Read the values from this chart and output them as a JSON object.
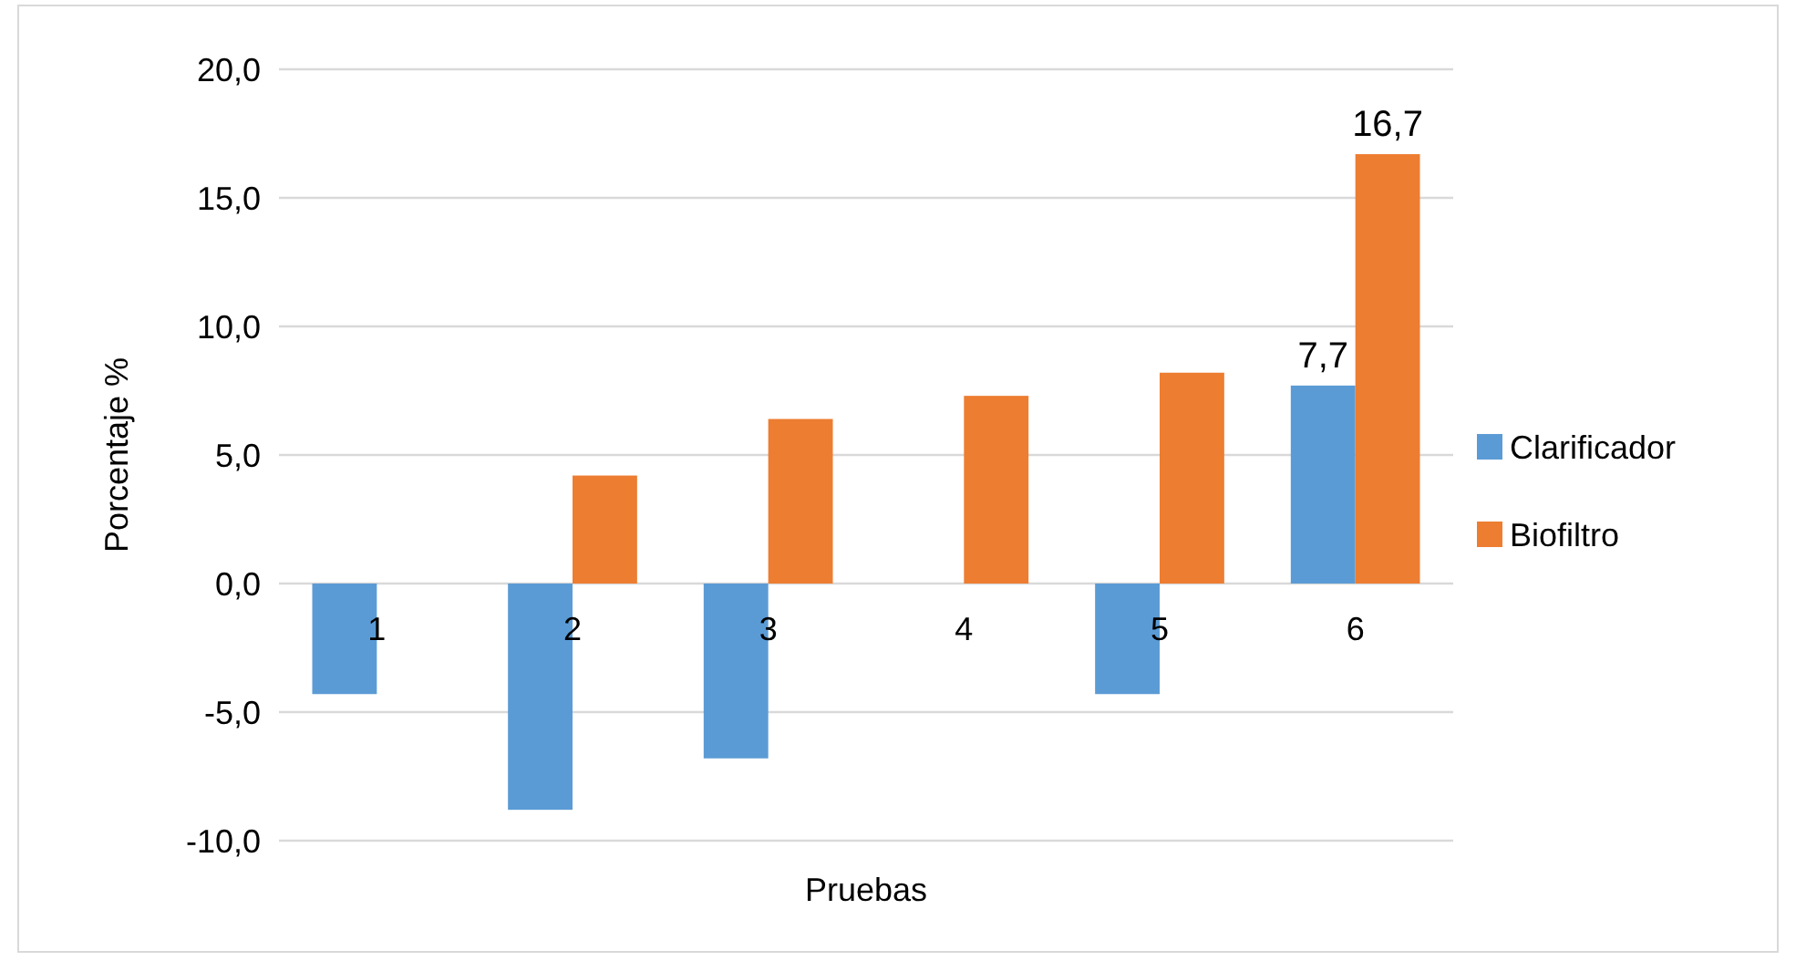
{
  "chart_data": {
    "type": "bar",
    "xlabel": "Pruebas",
    "ylabel": "Porcentaje %",
    "categories": [
      "1",
      "2",
      "3",
      "4",
      "5",
      "6"
    ],
    "series": [
      {
        "name": "Clarificador",
        "color": "#5b9bd5",
        "values": [
          -4.3,
          -8.8,
          -6.8,
          0,
          -4.3,
          7.7
        ],
        "value_labels": [
          null,
          null,
          null,
          null,
          null,
          "7,7"
        ]
      },
      {
        "name": "Biofiltro",
        "color": "#ed7d31",
        "values": [
          0,
          4.2,
          6.4,
          7.3,
          8.2,
          16.7
        ],
        "value_labels": [
          null,
          null,
          null,
          null,
          null,
          "16,7"
        ]
      }
    ],
    "ylim": [
      -10,
      20
    ],
    "yticks": [
      {
        "value": -10,
        "label": "-10,0"
      },
      {
        "value": -5,
        "label": "-5,0"
      },
      {
        "value": 0,
        "label": "0,0"
      },
      {
        "value": 5,
        "label": "5,0"
      },
      {
        "value": 10,
        "label": "10,0"
      },
      {
        "value": 15,
        "label": "15,0"
      },
      {
        "value": 20,
        "label": "20,0"
      }
    ],
    "grid": "y",
    "legend": "right"
  }
}
